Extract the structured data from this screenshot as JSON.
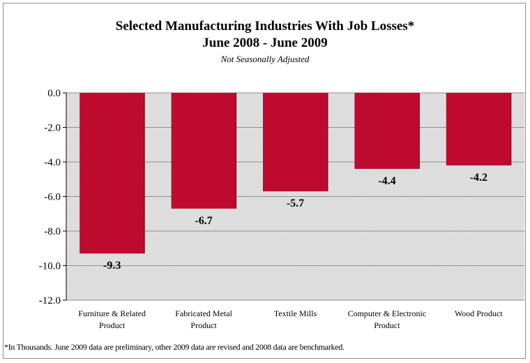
{
  "chart_data": {
    "type": "bar",
    "title": "Selected Manufacturing Industries With Job Losses*",
    "title_line2": "June 2008 - June 2009",
    "subtitle": "Not Seasonally Adjusted",
    "categories": [
      [
        "Furniture & Related",
        "Product"
      ],
      [
        "Fabricated Metal",
        "Product"
      ],
      [
        "Textile Mills"
      ],
      [
        "Computer & Electronic",
        "Product"
      ],
      [
        "Wood Product"
      ]
    ],
    "values": [
      -9.3,
      -6.7,
      -5.7,
      -4.4,
      -4.2
    ],
    "value_labels": [
      "-9.3",
      "-6.7",
      "-5.7",
      "-4.4",
      "-4.2"
    ],
    "yticks": [
      "0.0",
      "-2.0",
      "-4.0",
      "-6.0",
      "-8.0",
      "-10.0",
      "-12.0"
    ],
    "ylim": [
      -12,
      0
    ],
    "grid": true,
    "bar_color": "#be0a2e",
    "plot_background": "#d9d9d9",
    "footnote": "*In Thousands. June 2009 data are preliminary, other 2009 data are revised and 2008 data are benchmarked."
  }
}
